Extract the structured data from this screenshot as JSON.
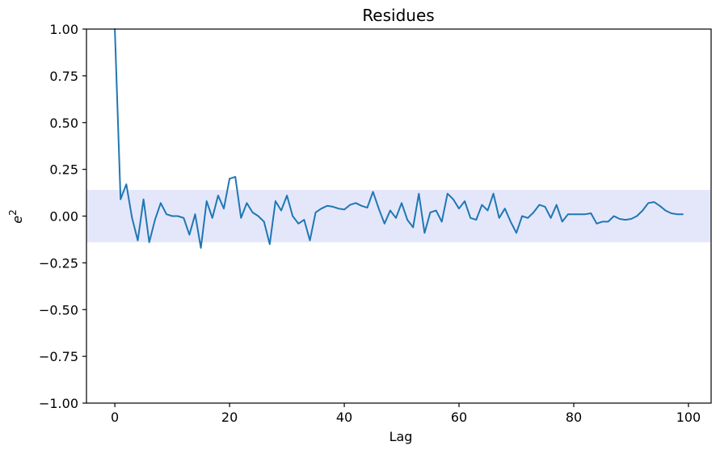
{
  "chart_data": {
    "type": "line",
    "title": "Residues",
    "xlabel": "Lag",
    "ylabel_base": "e",
    "ylabel_sup": "2",
    "x_start": 0,
    "x_step": 1,
    "values": [
      1.0,
      0.09,
      0.17,
      -0.01,
      -0.13,
      0.09,
      -0.14,
      -0.02,
      0.07,
      0.01,
      0.0,
      0.0,
      -0.01,
      -0.1,
      0.01,
      -0.17,
      0.08,
      -0.01,
      0.11,
      0.04,
      0.2,
      0.21,
      -0.01,
      0.07,
      0.02,
      0.0,
      -0.03,
      -0.15,
      0.08,
      0.03,
      0.11,
      0.0,
      -0.04,
      -0.02,
      -0.13,
      0.02,
      0.04,
      0.055,
      0.05,
      0.04,
      0.035,
      0.06,
      0.07,
      0.055,
      0.045,
      0.13,
      0.04,
      -0.04,
      0.03,
      -0.01,
      0.07,
      -0.02,
      -0.06,
      0.12,
      -0.09,
      0.02,
      0.03,
      -0.03,
      0.12,
      0.09,
      0.04,
      0.08,
      -0.01,
      -0.02,
      0.06,
      0.03,
      0.12,
      -0.01,
      0.04,
      -0.03,
      -0.09,
      0.0,
      -0.01,
      0.02,
      0.06,
      0.05,
      -0.01,
      0.06,
      -0.03,
      0.01,
      0.01,
      0.01,
      0.01,
      0.015,
      -0.04,
      -0.03,
      -0.03,
      0.0,
      -0.015,
      -0.02,
      -0.015,
      0.0,
      0.03,
      0.07,
      0.075,
      0.055,
      0.03,
      0.015,
      0.01,
      0.01
    ],
    "xlim": [
      -4.95,
      103.95
    ],
    "ylim": [
      -1.0,
      1.0
    ],
    "xticks": [
      0,
      20,
      40,
      60,
      80,
      100
    ],
    "xtick_labels": [
      "0",
      "20",
      "40",
      "60",
      "80",
      "100"
    ],
    "yticks": [
      1.0,
      0.75,
      0.5,
      0.25,
      0.0,
      -0.25,
      -0.5,
      -0.75,
      -1.0
    ],
    "ytick_labels": [
      "1.00",
      "0.75",
      "0.50",
      "0.25",
      "0.00",
      "−0.25",
      "−0.50",
      "−0.75",
      "−1.00"
    ],
    "confidence_band": [
      -0.14,
      0.14
    ],
    "line_color": "#1f77b4",
    "band_color": "#e4e7fa",
    "spine_color": "#000000",
    "grid": false,
    "legend": null
  }
}
